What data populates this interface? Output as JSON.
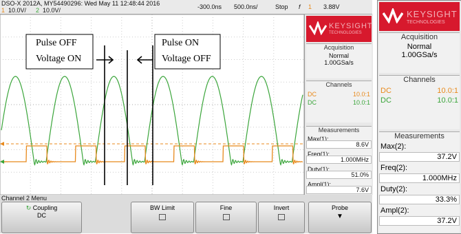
{
  "header": {
    "model": "DSO-X 2012A, MY54490296: Wed May 11 12:48:44 2016",
    "ch1_number": "1",
    "ch1_scale": "10.0V/",
    "ch2_number": "2",
    "ch2_scale": "10.0V/",
    "time_position": "-300.0ns",
    "time_scale": "500.0ns/",
    "run_state": "Stop",
    "trigger_icon": "f",
    "trigger_channel": "1",
    "trigger_level": "3.88V"
  },
  "annotations": {
    "left": [
      "Pulse OFF",
      "Voltage ON"
    ],
    "right": [
      "Pulse ON",
      "Voltage OFF"
    ]
  },
  "sidebar": {
    "brand": "KEYSIGHT",
    "brand_sub": "TECHNOLOGIES",
    "acquisition": {
      "title": "Acquisition",
      "mode": "Normal",
      "rate": "1.00GSa/s"
    },
    "channels": {
      "title": "Channels",
      "rows": [
        [
          "DC",
          "10.0:1"
        ],
        [
          "DC",
          "10.0:1"
        ]
      ]
    },
    "measurements": {
      "title": "Measurements",
      "items": [
        [
          "Max(1):",
          "8.6V"
        ],
        [
          "Freq(1):",
          "1.000MHz"
        ],
        [
          "Duty(1):",
          "51.0%"
        ],
        [
          "Ampl(1):",
          "7.6V"
        ]
      ]
    }
  },
  "menu": {
    "title": "Channel 2 Menu",
    "softkeys": [
      [
        "Coupling",
        "DC"
      ],
      [
        "BW Limit"
      ],
      [
        "Fine"
      ],
      [
        "Invert"
      ],
      [
        "Probe"
      ]
    ]
  },
  "panel": {
    "brand": "KEYSIGHT",
    "brand_sub": "TECHNOLOGIES",
    "acquisition": {
      "title": "Acquisition",
      "mode": "Normal",
      "rate": "1.00GSa/s"
    },
    "channels": {
      "title": "Channels",
      "rows": [
        [
          "DC",
          "10.0:1"
        ],
        [
          "DC",
          "10.0:1"
        ]
      ]
    },
    "measurements": {
      "title": "Measurements",
      "items": [
        [
          "Max(2):",
          "37.2V"
        ],
        [
          "Freq(2):",
          "1.000MHz"
        ],
        [
          "Duty(2):",
          "33.3%"
        ],
        [
          "Ampl(2):",
          "37.2V"
        ]
      ]
    }
  }
}
